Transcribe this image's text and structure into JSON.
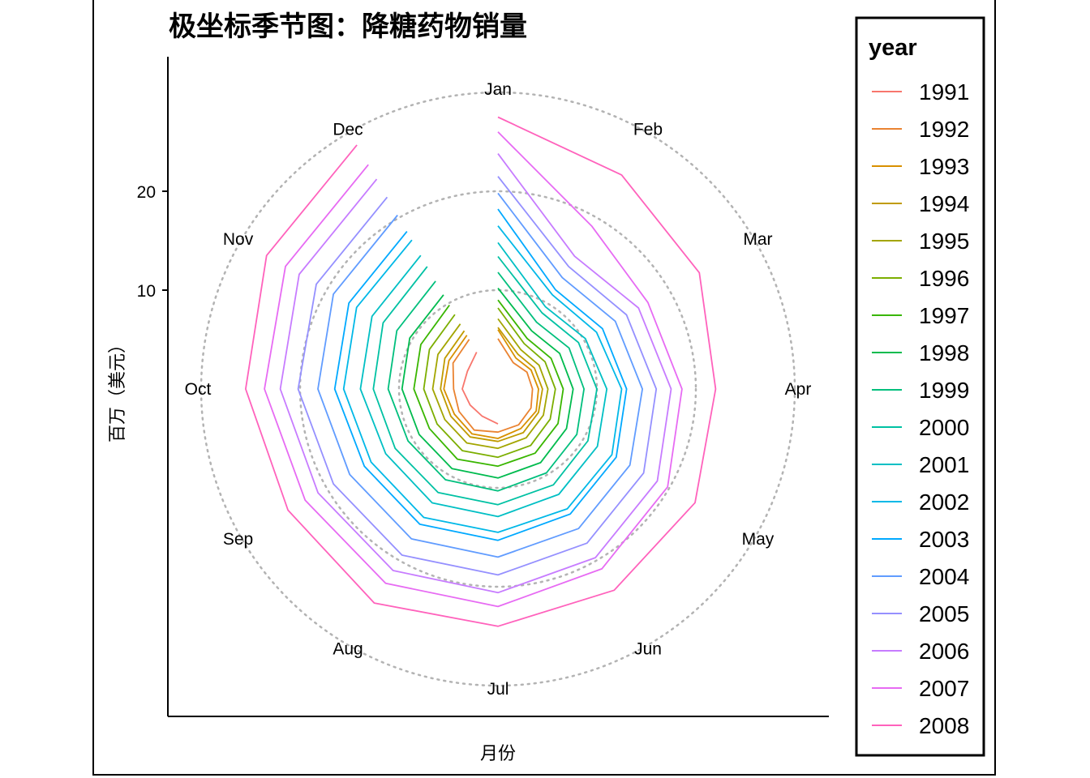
{
  "chart_data": {
    "type": "line",
    "coord": "polar",
    "title": "极坐标季节图：降糖药物销量",
    "xlabel": "月份",
    "ylabel": "百万（美元）",
    "categories": [
      "Jan",
      "Feb",
      "Mar",
      "Apr",
      "May",
      "Jun",
      "Jul",
      "Aug",
      "Sep",
      "Oct",
      "Nov",
      "Dec"
    ],
    "y_ticks": [
      10,
      20
    ],
    "rlim": [
      0,
      30
    ],
    "grid": "dotted",
    "legend": {
      "title": "year",
      "position": "right"
    },
    "series": [
      {
        "name": "1991",
        "color": "#F8766D",
        "values": [
          null,
          null,
          null,
          null,
          null,
          null,
          3.53,
          3.18,
          3.25,
          3.61,
          3.57,
          4.31
        ]
      },
      {
        "name": "1992",
        "color": "#EA8331",
        "values": [
          5.09,
          3.08,
          3.39,
          3.49,
          3.85,
          4.18,
          4.36,
          4.8,
          4.54,
          4.48,
          5.24,
          5.8
        ]
      },
      {
        "name": "1993",
        "color": "#D89000",
        "values": [
          6.0,
          3.62,
          3.86,
          4.1,
          4.46,
          4.62,
          5.0,
          5.24,
          5.09,
          5.47,
          5.73,
          6.28
        ]
      },
      {
        "name": "1994",
        "color": "#C09B00",
        "values": [
          6.22,
          4.05,
          4.25,
          4.5,
          4.73,
          5.1,
          5.3,
          5.6,
          5.5,
          5.8,
          6.2,
          6.8
        ]
      },
      {
        "name": "1995",
        "color": "#A3A500",
        "values": [
          7.1,
          4.6,
          4.8,
          5.05,
          5.3,
          5.7,
          6.0,
          6.3,
          6.2,
          6.6,
          7.0,
          7.6
        ]
      },
      {
        "name": "1996",
        "color": "#7CAE00",
        "values": [
          8.2,
          5.3,
          5.5,
          5.8,
          6.1,
          6.6,
          6.9,
          7.2,
          7.1,
          7.5,
          8.0,
          8.7
        ]
      },
      {
        "name": "1997",
        "color": "#39B600",
        "values": [
          9.0,
          5.9,
          6.2,
          6.6,
          7.0,
          7.5,
          7.8,
          8.2,
          8.0,
          8.5,
          9.0,
          9.8
        ]
      },
      {
        "name": "1998",
        "color": "#00BB4E",
        "values": [
          10.2,
          6.8,
          7.2,
          7.6,
          8.0,
          8.6,
          9.0,
          9.3,
          9.2,
          9.7,
          10.3,
          11.0
        ]
      },
      {
        "name": "1999",
        "color": "#00BF7D",
        "values": [
          11.8,
          7.8,
          8.3,
          8.7,
          9.2,
          9.8,
          10.3,
          10.6,
          10.5,
          11.1,
          11.8,
          12.6
        ]
      },
      {
        "name": "2000",
        "color": "#00C1A3",
        "values": [
          13.4,
          8.9,
          9.4,
          10.0,
          10.5,
          11.2,
          11.7,
          12.1,
          12.0,
          12.6,
          13.4,
          14.3
        ]
      },
      {
        "name": "2001",
        "color": "#00BFC4",
        "values": [
          14.8,
          9.6,
          10.2,
          11.0,
          11.6,
          12.3,
          12.9,
          13.3,
          13.1,
          13.9,
          14.7,
          15.6
        ]
      },
      {
        "name": "2002",
        "color": "#00B8E7",
        "values": [
          16.5,
          11.0,
          11.5,
          12.5,
          13.3,
          14.0,
          14.5,
          15.0,
          14.8,
          15.6,
          16.5,
          17.4
        ]
      },
      {
        "name": "2003",
        "color": "#00A9FF",
        "values": [
          18.2,
          11.6,
          12.2,
          13.0,
          13.8,
          14.6,
          15.3,
          15.8,
          15.6,
          16.5,
          17.4,
          18.4
        ]
      },
      {
        "name": "2004",
        "color": "#619CFF",
        "values": [
          19.8,
          13.0,
          13.7,
          14.6,
          15.4,
          16.3,
          17.0,
          17.5,
          17.3,
          18.2,
          19.2,
          20.3
        ]
      },
      {
        "name": "2005",
        "color": "#9590FF",
        "values": [
          21.5,
          14.3,
          15.0,
          16.0,
          17.0,
          18.0,
          18.8,
          19.4,
          19.2,
          20.2,
          21.2,
          22.4
        ]
      },
      {
        "name": "2006",
        "color": "#C77CFF",
        "values": [
          23.8,
          15.5,
          16.4,
          17.5,
          18.6,
          19.7,
          20.6,
          21.2,
          21.0,
          22.0,
          23.2,
          24.5
        ]
      },
      {
        "name": "2007",
        "color": "#E76BF3",
        "values": [
          26.0,
          19.0,
          17.5,
          18.6,
          19.8,
          21.0,
          22.0,
          22.7,
          22.5,
          23.6,
          24.8,
          26.2
        ]
      },
      {
        "name": "2008",
        "color": "#FF62BC",
        "values": [
          27.5,
          25.0,
          23.5,
          22.0,
          23.0,
          23.5,
          24.0,
          25.0,
          24.5,
          25.5,
          27.0,
          28.5
        ]
      }
    ]
  }
}
